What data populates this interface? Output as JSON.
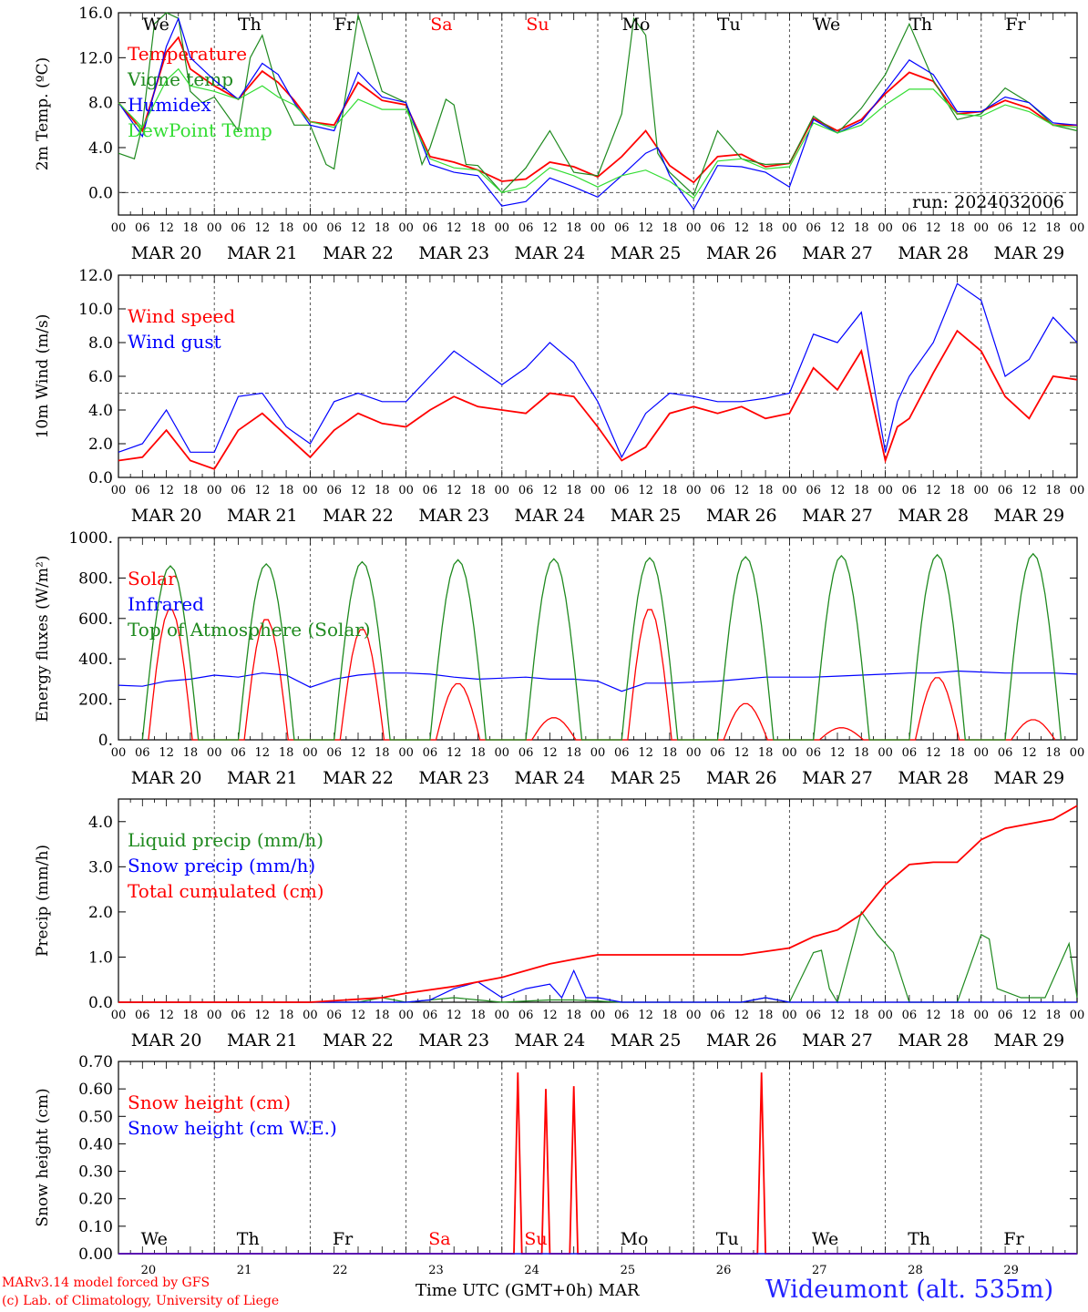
{
  "station": {
    "label": "Wideumont (alt. 535m)",
    "credit_line1": "MARv3.14 model forced by GFS",
    "credit_line2": "(c) Lab. of Climatology, University of Liege",
    "xaxis_title": "Time UTC (GMT+0h)",
    "month": "MAR",
    "run": "run: 2024032006"
  },
  "colors": {
    "red": "#ff0000",
    "green": "#1f8a1f",
    "blue": "#0000ff",
    "lightgreen": "#33dd33",
    "weekend": "#ff0000"
  },
  "days": {
    "weekdays": [
      "We",
      "Th",
      "Fr",
      "Sa",
      "Su",
      "Mo",
      "Tu",
      "We",
      "Th",
      "Fr"
    ],
    "weekend_index": [
      3,
      4
    ],
    "dates": [
      "MAR 20",
      "MAR 21",
      "MAR 22",
      "MAR 23",
      "MAR 24",
      "MAR 25",
      "MAR 26",
      "MAR 27",
      "MAR 28",
      "MAR 29"
    ],
    "day_numbers": [
      "20",
      "21",
      "22",
      "23",
      "24",
      "25",
      "26",
      "27",
      "28",
      "29"
    ],
    "hour_ticks": [
      "00",
      "06",
      "12",
      "18"
    ],
    "final_hour": "00"
  },
  "chart_data": [
    {
      "type": "line",
      "ylabel": "2m Temp. (ºC)",
      "ylim": [
        -2,
        16
      ],
      "yticks": [
        "0.0",
        "4.0",
        "8.0",
        "12.0",
        "16.0"
      ],
      "ytick_values": [
        0,
        4,
        8,
        12,
        16
      ],
      "dashed_ref": 0,
      "x_unit": "hours since MAR 20 00 UTC",
      "series": [
        {
          "name": "Temperature",
          "color": "red",
          "x": [
            0,
            6,
            12,
            15,
            18,
            24,
            30,
            36,
            40,
            44,
            48,
            54,
            60,
            66,
            72,
            78,
            84,
            90,
            96,
            102,
            108,
            114,
            120,
            126,
            132,
            138,
            144,
            150,
            156,
            162,
            168,
            174,
            180,
            186,
            192,
            198,
            204,
            210,
            216,
            222,
            228,
            234,
            240
          ],
          "y": [
            8.0,
            5.5,
            12.5,
            13.8,
            11.0,
            9.5,
            8.3,
            10.8,
            9.8,
            8.2,
            6.3,
            6.0,
            9.8,
            8.2,
            7.8,
            3.2,
            2.7,
            2.0,
            1.0,
            1.2,
            2.7,
            2.3,
            1.4,
            3.2,
            5.5,
            2.4,
            0.9,
            3.2,
            3.4,
            2.3,
            2.6,
            6.6,
            5.5,
            6.5,
            8.8,
            10.7,
            9.9,
            7.0,
            7.2,
            8.2,
            7.5,
            6.0,
            6.0
          ]
        },
        {
          "name": "Vigne temp",
          "color": "green",
          "x": [
            0,
            4,
            6,
            9,
            12,
            15,
            18,
            21,
            24,
            30,
            33,
            36,
            40,
            44,
            48,
            52,
            54,
            60,
            66,
            72,
            76,
            78,
            82,
            84,
            87,
            90,
            96,
            102,
            108,
            114,
            120,
            126,
            129,
            132,
            135,
            138,
            144,
            150,
            156,
            162,
            168,
            174,
            180,
            186,
            192,
            198,
            204,
            210,
            216,
            222,
            228,
            234,
            240
          ],
          "y": [
            3.5,
            3.0,
            6.0,
            15.0,
            16.0,
            15.5,
            9.0,
            8.0,
            8.5,
            5.5,
            12.0,
            14.0,
            9.0,
            6.0,
            6.0,
            2.5,
            2.1,
            15.8,
            9.0,
            8.0,
            2.5,
            4.0,
            8.3,
            7.8,
            2.5,
            2.4,
            0.0,
            2.2,
            5.5,
            1.8,
            1.5,
            7.0,
            15.5,
            14.0,
            3.5,
            1.8,
            -0.2,
            5.5,
            3.0,
            2.5,
            2.6,
            6.8,
            5.3,
            7.5,
            10.5,
            15.0,
            10.0,
            6.5,
            7.0,
            9.3,
            8.0,
            6.0,
            5.5
          ]
        },
        {
          "name": "Humidex",
          "color": "blue",
          "x": [
            0,
            6,
            12,
            15,
            18,
            24,
            30,
            36,
            40,
            44,
            48,
            54,
            60,
            66,
            72,
            78,
            84,
            90,
            96,
            102,
            108,
            114,
            120,
            126,
            132,
            135,
            138,
            144,
            150,
            156,
            162,
            168,
            174,
            180,
            186,
            192,
            198,
            204,
            210,
            216,
            222,
            228,
            234,
            240
          ],
          "y": [
            8.0,
            5.0,
            13.0,
            15.5,
            12.0,
            10.0,
            8.3,
            11.5,
            10.5,
            8.0,
            6.0,
            5.5,
            10.7,
            8.5,
            8.0,
            2.5,
            1.8,
            1.5,
            -1.2,
            -0.8,
            1.3,
            0.5,
            -0.4,
            1.5,
            3.5,
            4.0,
            1.5,
            -1.5,
            2.4,
            2.3,
            1.8,
            0.5,
            6.5,
            5.3,
            6.3,
            9.0,
            11.8,
            10.5,
            7.2,
            7.2,
            8.5,
            8.0,
            6.2,
            6.0
          ]
        },
        {
          "name": "DewPoint Temp",
          "color": "lightgreen",
          "x": [
            0,
            6,
            12,
            15,
            18,
            24,
            30,
            36,
            40,
            44,
            48,
            54,
            60,
            66,
            72,
            78,
            84,
            90,
            96,
            102,
            108,
            114,
            120,
            126,
            132,
            138,
            144,
            150,
            156,
            162,
            168,
            174,
            180,
            186,
            192,
            198,
            204,
            210,
            216,
            222,
            228,
            234,
            240
          ],
          "y": [
            8.0,
            5.8,
            10.0,
            11.0,
            9.5,
            9.0,
            8.3,
            9.5,
            8.5,
            7.8,
            6.3,
            5.8,
            8.3,
            7.4,
            7.4,
            3.0,
            2.2,
            2.0,
            0.0,
            0.5,
            2.2,
            1.5,
            0.5,
            1.5,
            2.0,
            1.0,
            -0.5,
            2.8,
            3.0,
            2.1,
            2.3,
            6.2,
            5.3,
            6.0,
            7.8,
            9.2,
            9.2,
            7.0,
            6.8,
            7.8,
            7.2,
            6.0,
            5.8
          ]
        }
      ]
    },
    {
      "type": "line",
      "ylabel": "10m Wind (m/s)",
      "ylim": [
        0,
        12
      ],
      "yticks": [
        "0.0",
        "2.0",
        "4.0",
        "6.0",
        "8.0",
        "10.0",
        "12.0"
      ],
      "ytick_values": [
        0,
        2,
        4,
        6,
        8,
        10,
        12
      ],
      "dashed_ref": 5,
      "series": [
        {
          "name": "Wind speed",
          "color": "red",
          "x": [
            0,
            6,
            12,
            18,
            24,
            30,
            36,
            42,
            48,
            54,
            60,
            66,
            72,
            78,
            84,
            90,
            96,
            102,
            108,
            114,
            120,
            126,
            132,
            138,
            144,
            150,
            156,
            162,
            168,
            174,
            180,
            186,
            192,
            195,
            198,
            204,
            210,
            216,
            222,
            228,
            234,
            240
          ],
          "y": [
            1.0,
            1.2,
            2.8,
            1.0,
            0.5,
            2.8,
            3.8,
            2.5,
            1.2,
            2.8,
            3.8,
            3.2,
            3.0,
            4.0,
            4.8,
            4.2,
            4.0,
            3.8,
            5.0,
            4.8,
            3.0,
            1.0,
            1.8,
            3.8,
            4.2,
            3.8,
            4.2,
            3.5,
            3.8,
            6.5,
            5.2,
            7.5,
            1.0,
            3.0,
            3.5,
            6.2,
            8.7,
            7.5,
            4.8,
            3.5,
            6.0,
            5.8
          ]
        },
        {
          "name": "Wind gust",
          "color": "blue",
          "x": [
            0,
            6,
            12,
            18,
            24,
            30,
            36,
            42,
            48,
            54,
            60,
            66,
            72,
            78,
            84,
            90,
            96,
            102,
            108,
            114,
            120,
            126,
            132,
            138,
            144,
            150,
            156,
            162,
            168,
            174,
            180,
            186,
            192,
            195,
            198,
            204,
            210,
            216,
            222,
            228,
            234,
            240
          ],
          "y": [
            1.5,
            2.0,
            4.0,
            1.5,
            1.5,
            4.8,
            5.0,
            3.0,
            2.0,
            4.5,
            5.0,
            4.5,
            4.5,
            6.0,
            7.5,
            6.5,
            5.5,
            6.5,
            8.0,
            6.8,
            4.5,
            1.2,
            3.8,
            5.0,
            4.8,
            4.5,
            4.5,
            4.7,
            5.0,
            8.5,
            8.0,
            9.8,
            1.5,
            4.5,
            6.0,
            8.0,
            11.5,
            10.5,
            6.0,
            7.0,
            9.5,
            8.0
          ]
        }
      ]
    },
    {
      "type": "line",
      "ylabel": "Energy fluxes (W/m²)",
      "ylim": [
        0,
        1000
      ],
      "yticks": [
        "0.",
        "200.",
        "400.",
        "600.",
        "800.",
        "1000."
      ],
      "ytick_values": [
        0,
        200,
        400,
        600,
        800,
        1000
      ],
      "series": [
        {
          "name": "Solar",
          "color": "red",
          "peaks": [
            650,
            600,
            550,
            280,
            110,
            650,
            180,
            60,
            310,
            100
          ]
        },
        {
          "name": "Infrared",
          "color": "blue",
          "x": [
            0,
            6,
            12,
            18,
            24,
            30,
            36,
            42,
            48,
            54,
            60,
            66,
            72,
            78,
            84,
            90,
            96,
            102,
            108,
            114,
            120,
            126,
            132,
            138,
            144,
            150,
            156,
            162,
            168,
            174,
            180,
            186,
            192,
            198,
            204,
            210,
            216,
            222,
            228,
            234,
            240
          ],
          "y": [
            270,
            265,
            290,
            300,
            320,
            310,
            330,
            320,
            260,
            300,
            320,
            330,
            330,
            325,
            310,
            300,
            305,
            310,
            300,
            300,
            290,
            240,
            280,
            280,
            285,
            290,
            300,
            310,
            310,
            310,
            315,
            320,
            325,
            330,
            330,
            340,
            335,
            330,
            330,
            330,
            325
          ]
        },
        {
          "name": "Top of Atmosphere (Solar)",
          "color": "green",
          "peaks": [
            860,
            870,
            880,
            890,
            895,
            900,
            905,
            910,
            915,
            920
          ]
        }
      ]
    },
    {
      "type": "line",
      "ylabel": "Precip (mm/h)",
      "ylim": [
        0,
        4.5
      ],
      "yticks": [
        "0.0",
        "1.0",
        "2.0",
        "3.0",
        "4.0"
      ],
      "ytick_values": [
        0,
        1,
        2,
        3,
        4
      ],
      "series": [
        {
          "name": "Liquid precip (mm/h)",
          "color": "green",
          "x": [
            0,
            60,
            66,
            72,
            84,
            90,
            96,
            108,
            114,
            126,
            144,
            156,
            162,
            168,
            174,
            176,
            178,
            180,
            186,
            190,
            194,
            198,
            204,
            210,
            216,
            218,
            220,
            226,
            232,
            238,
            240
          ],
          "y": [
            0,
            0,
            0.1,
            0,
            0.1,
            0.05,
            0,
            0.05,
            0.05,
            0,
            0,
            0,
            0.1,
            0,
            1.1,
            1.15,
            0.3,
            0,
            2.0,
            1.5,
            1.1,
            0,
            0,
            0,
            1.5,
            1.4,
            0.3,
            0.1,
            0.1,
            1.3,
            0.1
          ]
        },
        {
          "name": "Snow precip (mm/h)",
          "color": "blue",
          "x": [
            0,
            72,
            78,
            84,
            90,
            96,
            102,
            108,
            111,
            114,
            117,
            120,
            126,
            144,
            156,
            162,
            168,
            240
          ],
          "y": [
            0,
            0,
            0.05,
            0.3,
            0.45,
            0.1,
            0.3,
            0.4,
            0.1,
            0.7,
            0.1,
            0.1,
            0,
            0,
            0,
            0.1,
            0,
            0
          ]
        },
        {
          "name": "Total cumulated (cm)",
          "color": "red",
          "x": [
            0,
            48,
            66,
            72,
            84,
            96,
            108,
            114,
            120,
            132,
            144,
            150,
            156,
            168,
            174,
            180,
            186,
            192,
            198,
            204,
            210,
            216,
            222,
            228,
            234,
            240
          ],
          "y": [
            0.0,
            0.0,
            0.1,
            0.2,
            0.35,
            0.55,
            0.85,
            0.95,
            1.05,
            1.05,
            1.05,
            1.05,
            1.05,
            1.2,
            1.45,
            1.6,
            1.95,
            2.6,
            3.05,
            3.1,
            3.1,
            3.6,
            3.85,
            3.95,
            4.05,
            4.35
          ]
        }
      ]
    },
    {
      "type": "line",
      "ylabel": "Snow height (cm)",
      "ylim": [
        0,
        0.7
      ],
      "yticks": [
        "0.00",
        "0.10",
        "0.20",
        "0.30",
        "0.40",
        "0.50",
        "0.60",
        "0.70"
      ],
      "ytick_values": [
        0,
        0.1,
        0.2,
        0.3,
        0.4,
        0.5,
        0.6,
        0.7
      ],
      "series": [
        {
          "name": "Snow height (cm)",
          "color": "red",
          "x": [
            0,
            99,
            100,
            101,
            106,
            107,
            108,
            113,
            114,
            115,
            160,
            161,
            162,
            240
          ],
          "y": [
            0,
            0,
            0.66,
            0,
            0,
            0.6,
            0,
            0,
            0.61,
            0,
            0,
            0.66,
            0,
            0
          ]
        },
        {
          "name": "Snow height (cm W.E.)",
          "color": "blue",
          "x": [
            0,
            240
          ],
          "y": [
            0,
            0
          ]
        }
      ]
    }
  ]
}
